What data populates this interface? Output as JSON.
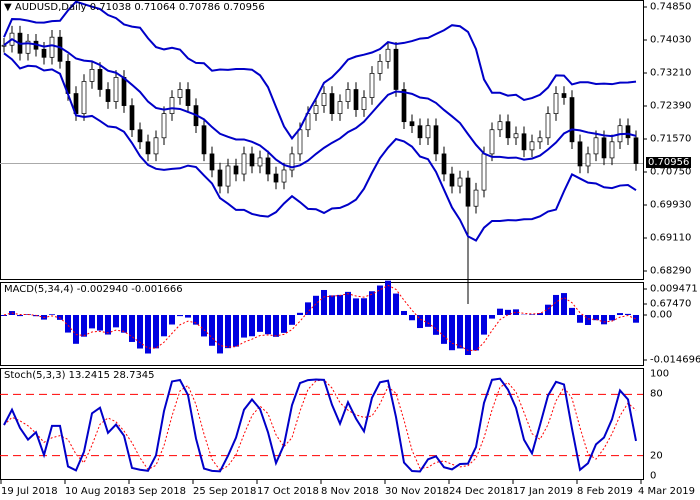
{
  "header": {
    "symbol": "AUDUSD,Daily",
    "values": "0.71038 0.71064 0.70786 0.70956"
  },
  "price_axis": [
    "0.74850",
    "0.74030",
    "0.73210",
    "0.72390",
    "0.71570",
    "0.70750",
    "0.69930",
    "0.69110",
    "0.68290",
    "0.67470"
  ],
  "current_price": "0.70956",
  "macd": {
    "label": "MACD(5,34,4) -0.002940 -0.001666",
    "axis": [
      "0.009471",
      "0.00",
      "-0.014696"
    ]
  },
  "stoch": {
    "label": "Stoch(5,3,3) 13.2415 28.7345",
    "axis": [
      "100",
      "80",
      "20",
      "0"
    ]
  },
  "dates": [
    "19 Jul 2018",
    "10 Aug 2018",
    "3 Sep 2018",
    "25 Sep 2018",
    "17 Oct 2018",
    "8 Nov 2018",
    "30 Nov 2018",
    "24 Dec 2018",
    "17 Jan 2019",
    "8 Feb 2019",
    "4 Mar 2019"
  ],
  "colors": {
    "bands": "#0000c8",
    "macd": "#0000e0",
    "signal": "#ff0000",
    "stoch": "#0000c8"
  },
  "chart_data": {
    "type": "candlestick",
    "closes": [
      0.739,
      0.742,
      0.737,
      0.74,
      0.738,
      0.736,
      0.741,
      0.735,
      0.727,
      0.722,
      0.73,
      0.733,
      0.728,
      0.725,
      0.731,
      0.724,
      0.718,
      0.715,
      0.712,
      0.716,
      0.722,
      0.726,
      0.728,
      0.724,
      0.719,
      0.712,
      0.708,
      0.704,
      0.709,
      0.707,
      0.712,
      0.709,
      0.711,
      0.707,
      0.705,
      0.708,
      0.712,
      0.718,
      0.722,
      0.724,
      0.727,
      0.722,
      0.725,
      0.728,
      0.723,
      0.726,
      0.732,
      0.735,
      0.738,
      0.728,
      0.72,
      0.719,
      0.716,
      0.719,
      0.712,
      0.707,
      0.704,
      0.706,
      0.699,
      0.703,
      0.712,
      0.718,
      0.72,
      0.716,
      0.717,
      0.713,
      0.715,
      0.716,
      0.722,
      0.727,
      0.726,
      0.715,
      0.709,
      0.712,
      0.716,
      0.711,
      0.715,
      0.719,
      0.716,
      0.7096
    ],
    "spike_low": 0.6747,
    "ylim": [
      0.6747,
      0.7485
    ]
  }
}
